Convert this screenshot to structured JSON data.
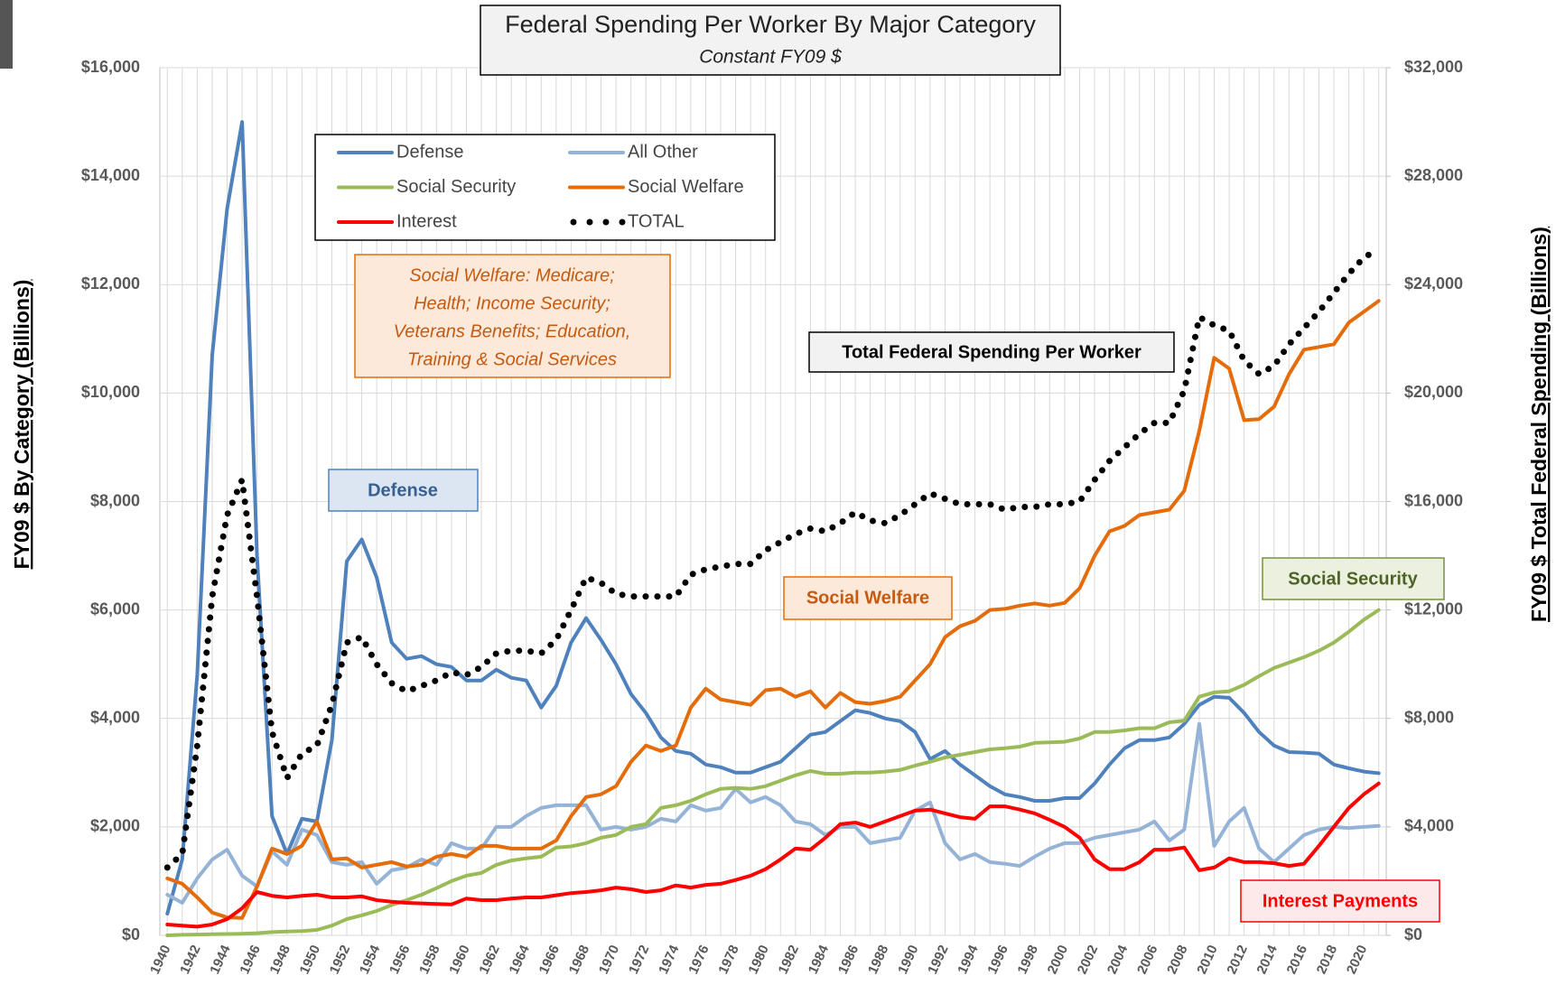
{
  "chart_data": {
    "type": "line",
    "title": "Federal Spending Per Worker By Major Category",
    "subtitle": "Constant FY09 $",
    "ylabel": "FY09 $ By Category (Billions)",
    "y2label": "FY09 $ Total Federal Spending (Billions)",
    "categories": [
      "1940",
      null,
      "1942",
      null,
      "1944",
      null,
      "1946",
      null,
      "1948",
      null,
      "1950",
      null,
      "1952",
      null,
      "1954",
      null,
      "1956",
      null,
      "1958",
      null,
      "1960",
      null,
      "1962",
      null,
      "1964",
      null,
      "1966",
      null,
      "1968",
      null,
      "1970",
      null,
      "1972",
      null,
      "1974",
      null,
      "1976",
      null,
      "1978",
      null,
      "1980",
      null,
      "1982",
      null,
      "1984",
      null,
      "1986",
      null,
      "1988",
      null,
      "1990",
      null,
      "1992",
      null,
      "1994",
      null,
      "1996",
      null,
      "1998",
      null,
      "2000",
      null,
      "2002",
      null,
      "2004",
      null,
      "2006",
      null,
      "2008",
      null,
      "2010",
      null,
      "2012",
      null,
      "2014",
      null,
      "2016",
      null,
      "2018",
      null,
      "2020",
      null
    ],
    "ylim": [
      0,
      16000
    ],
    "yticks": [
      {
        "value": 0,
        "label": "$0"
      },
      {
        "value": 2000,
        "label": "$2,000"
      },
      {
        "value": 4000,
        "label": "$4,000"
      },
      {
        "value": 6000,
        "label": "$6,000"
      },
      {
        "value": 8000,
        "label": "$8,000"
      },
      {
        "value": 10000,
        "label": "$10,000"
      },
      {
        "value": 12000,
        "label": "$12,000"
      },
      {
        "value": 14000,
        "label": "$14,000"
      },
      {
        "value": 16000,
        "label": "$16,000"
      }
    ],
    "y2lim": [
      0,
      32000
    ],
    "y2ticks": [
      {
        "value": 0,
        "label": "$0"
      },
      {
        "value": 4000,
        "label": "$4,000"
      },
      {
        "value": 8000,
        "label": "$8,000"
      },
      {
        "value": 12000,
        "label": "$12,000"
      },
      {
        "value": 16000,
        "label": "$16,000"
      },
      {
        "value": 20000,
        "label": "$20,000"
      },
      {
        "value": 24000,
        "label": "$24,000"
      },
      {
        "value": 28000,
        "label": "$28,000"
      },
      {
        "value": 32000,
        "label": "$32,000"
      }
    ],
    "grid": true,
    "series": [
      {
        "name": "Defense",
        "color": "#4f81bd",
        "values": [
          400,
          1400,
          4800,
          10700,
          13400,
          15000,
          7000,
          2200,
          1500,
          2150,
          2100,
          3600,
          6900,
          7300,
          6600,
          5400,
          5100,
          5150,
          5000,
          4950,
          4700,
          4700,
          4900,
          4750,
          4700,
          4200,
          4600,
          5400,
          5850,
          5450,
          5000,
          4450,
          4100,
          3650,
          3400,
          3350,
          3150,
          3100,
          3000,
          3000,
          3100,
          3200,
          3450,
          3700,
          3750,
          3950,
          4150,
          4100,
          4000,
          3950,
          3750,
          3250,
          3400,
          3150,
          2950,
          2750,
          2600,
          2550,
          2480,
          2480,
          2530,
          2530,
          2800,
          3150,
          3450,
          3600,
          3600,
          3650,
          3900,
          4250,
          4400,
          4380,
          4100,
          3750,
          3500,
          3380,
          3370,
          3350,
          3150,
          3080,
          3020,
          2990
        ]
      },
      {
        "name": "All Other",
        "color": "#95b3d7",
        "values": [
          750,
          600,
          1050,
          1400,
          1580,
          1100,
          900,
          1550,
          1300,
          1950,
          1850,
          1350,
          1300,
          1350,
          950,
          1200,
          1250,
          1400,
          1300,
          1700,
          1600,
          1600,
          2000,
          2000,
          2200,
          2350,
          2400,
          2400,
          2400,
          1950,
          2000,
          1950,
          2000,
          2150,
          2100,
          2400,
          2300,
          2350,
          2700,
          2450,
          2550,
          2400,
          2100,
          2050,
          1850,
          2000,
          2000,
          1700,
          1750,
          1800,
          2300,
          2450,
          1700,
          1400,
          1500,
          1350,
          1320,
          1280,
          1450,
          1600,
          1700,
          1700,
          1800,
          1850,
          1900,
          1950,
          2100,
          1750,
          1950,
          3900,
          1650,
          2100,
          2350,
          1600,
          1350,
          1600,
          1850,
          1950,
          2000,
          1980,
          2000,
          2020
        ]
      },
      {
        "name": "Social Security",
        "color": "#9bbb59",
        "values": [
          0,
          10,
          15,
          20,
          25,
          30,
          40,
          60,
          70,
          80,
          100,
          180,
          300,
          370,
          450,
          560,
          650,
          750,
          870,
          1000,
          1100,
          1150,
          1300,
          1380,
          1420,
          1450,
          1620,
          1640,
          1700,
          1800,
          1850,
          2000,
          2050,
          2350,
          2400,
          2480,
          2600,
          2700,
          2720,
          2700,
          2750,
          2850,
          2950,
          3030,
          2980,
          2980,
          3000,
          3000,
          3020,
          3050,
          3130,
          3200,
          3280,
          3330,
          3380,
          3430,
          3450,
          3480,
          3550,
          3560,
          3570,
          3630,
          3750,
          3750,
          3780,
          3820,
          3820,
          3930,
          3960,
          4400,
          4480,
          4500,
          4620,
          4780,
          4930,
          5030,
          5130,
          5250,
          5400,
          5600,
          5820,
          6000
        ]
      },
      {
        "name": "Social Welfare",
        "color": "#e46c0a",
        "values": [
          1050,
          950,
          700,
          420,
          330,
          320,
          900,
          1600,
          1500,
          1650,
          2100,
          1400,
          1420,
          1250,
          1300,
          1350,
          1270,
          1300,
          1450,
          1500,
          1450,
          1650,
          1650,
          1600,
          1600,
          1600,
          1750,
          2200,
          2550,
          2600,
          2750,
          3200,
          3500,
          3400,
          3500,
          4200,
          4550,
          4350,
          4300,
          4250,
          4520,
          4550,
          4400,
          4500,
          4200,
          4470,
          4300,
          4270,
          4320,
          4400,
          4700,
          5000,
          5500,
          5700,
          5800,
          6000,
          6020,
          6080,
          6120,
          6080,
          6130,
          6400,
          7000,
          7450,
          7550,
          7750,
          7800,
          7850,
          8200,
          9300,
          10650,
          10450,
          9500,
          9520,
          9750,
          10350,
          10800,
          10850,
          10900,
          11300,
          11500,
          11700
        ]
      },
      {
        "name": "Interest",
        "color": "#ff0000",
        "values": [
          200,
          180,
          160,
          200,
          300,
          500,
          800,
          730,
          700,
          730,
          750,
          700,
          700,
          720,
          650,
          620,
          600,
          590,
          580,
          570,
          680,
          650,
          650,
          680,
          700,
          700,
          740,
          780,
          800,
          830,
          880,
          850,
          800,
          830,
          920,
          880,
          930,
          950,
          1020,
          1100,
          1220,
          1400,
          1600,
          1580,
          1800,
          2050,
          2080,
          2000,
          2100,
          2200,
          2300,
          2320,
          2250,
          2180,
          2150,
          2380,
          2380,
          2320,
          2250,
          2130,
          2000,
          1800,
          1400,
          1220,
          1220,
          1350,
          1580,
          1580,
          1620,
          1200,
          1250,
          1420,
          1350,
          1350,
          1330,
          1280,
          1320,
          1650,
          2000,
          2350,
          2600,
          2800
        ]
      },
      {
        "name": "TOTAL",
        "color": "#000000",
        "axis": "y2",
        "dotted": true,
        "values": [
          2500,
          3000,
          7000,
          12500,
          15500,
          16800,
          12500,
          7500,
          5800,
          6700,
          7000,
          8500,
          10800,
          11000,
          10000,
          9300,
          9000,
          9200,
          9400,
          9700,
          9600,
          9900,
          10400,
          10500,
          10500,
          10400,
          10900,
          12000,
          13200,
          13000,
          12600,
          12500,
          12500,
          12500,
          12500,
          13300,
          13500,
          13600,
          13700,
          13700,
          14200,
          14500,
          14800,
          15000,
          14900,
          15200,
          15600,
          15300,
          15200,
          15500,
          15900,
          16300,
          16100,
          15900,
          15900,
          15900,
          15700,
          15800,
          15800,
          15900,
          15900,
          16000,
          16800,
          17500,
          18000,
          18500,
          18900,
          18900,
          20100,
          22800,
          22500,
          22300,
          21200,
          20700,
          21000,
          21800,
          22400,
          23000,
          23700,
          24400,
          25000,
          25300
        ]
      }
    ],
    "annotations": [
      {
        "lines": [
          "Social Welfare: Medicare;",
          "Health; Income Security;",
          "Veterans Benefits; Education,",
          "Training & Social Services"
        ]
      },
      {
        "text": "Total Federal Spending Per Worker"
      },
      {
        "text": "Defense"
      },
      {
        "text": "Social Welfare"
      },
      {
        "text": "Social Security"
      },
      {
        "text": "Interest Payments"
      }
    ]
  }
}
